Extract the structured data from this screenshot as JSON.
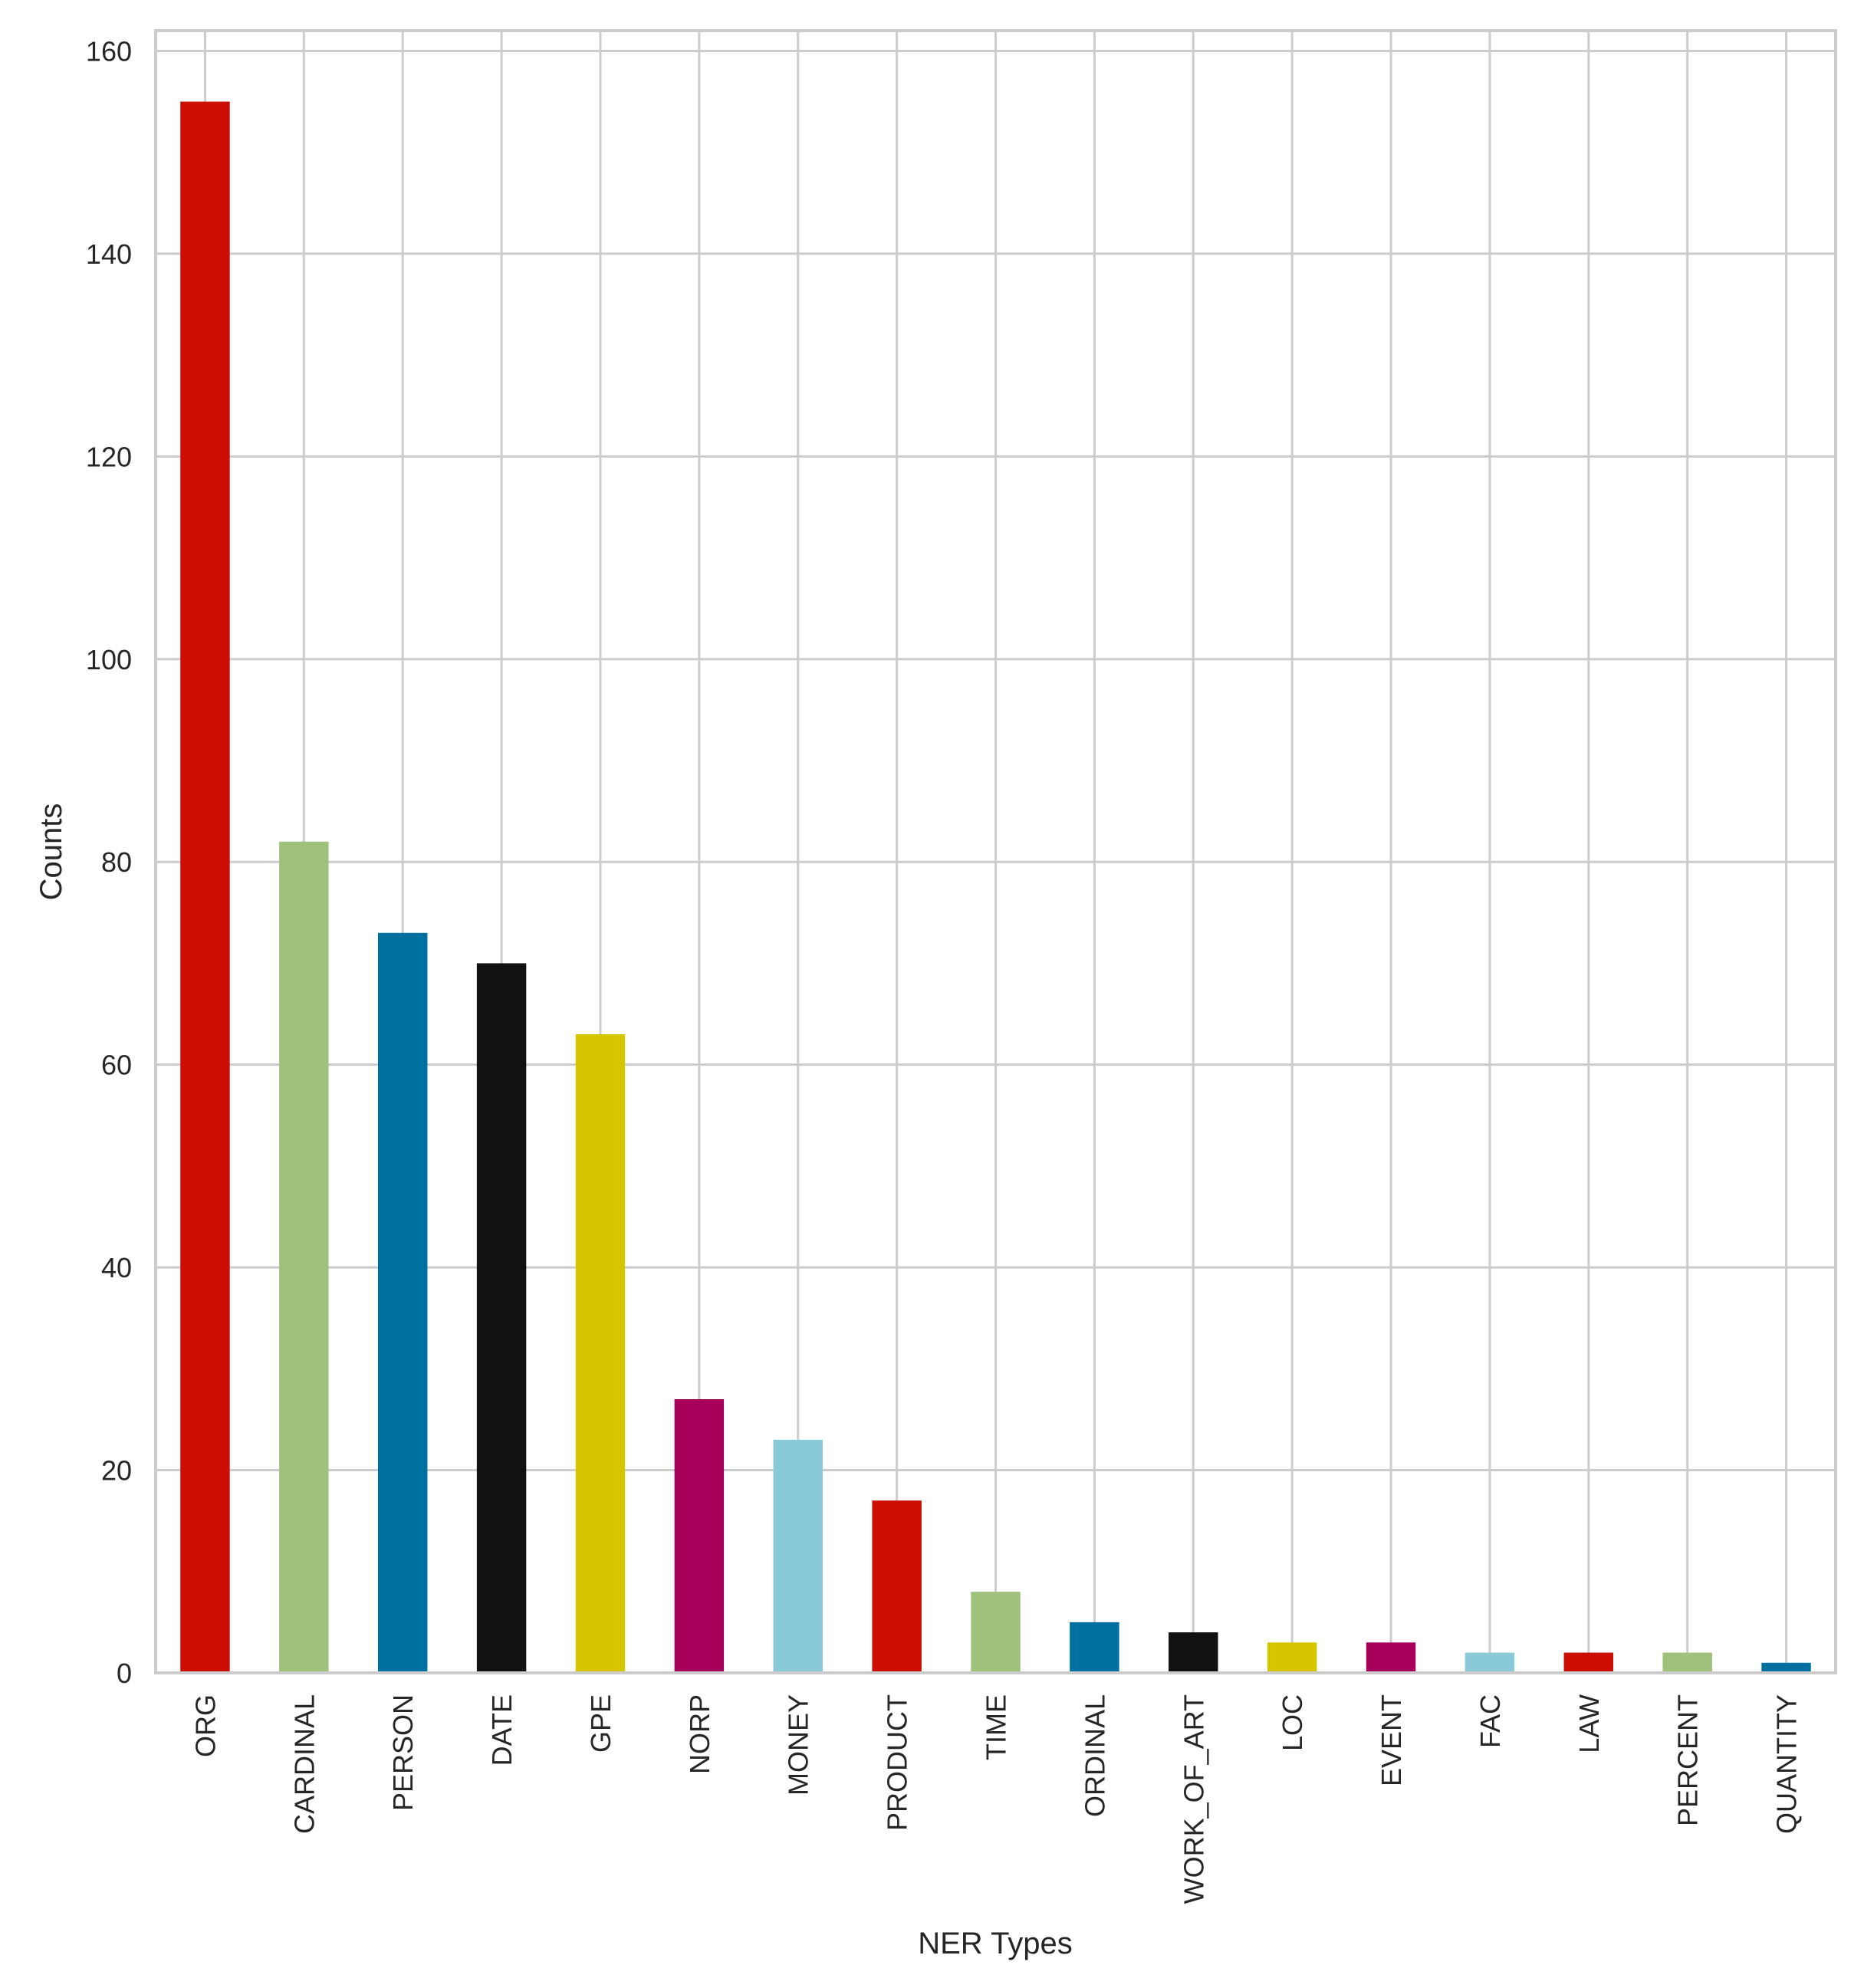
{
  "chart_data": {
    "type": "bar",
    "title": "",
    "xlabel": "NER Types",
    "ylabel": "Counts",
    "ylim": [
      0,
      162
    ],
    "yticks": [
      0,
      20,
      40,
      60,
      80,
      100,
      120,
      140,
      160
    ],
    "grid": true,
    "categories": [
      "ORG",
      "CARDINAL",
      "PERSON",
      "DATE",
      "GPE",
      "NORP",
      "MONEY",
      "PRODUCT",
      "TIME",
      "ORDINAL",
      "WORK_OF_ART",
      "LOC",
      "EVENT",
      "FAC",
      "LAW",
      "PERCENT",
      "QUANTITY"
    ],
    "values": [
      155,
      82,
      73,
      70,
      63,
      27,
      23,
      17,
      8,
      5,
      4,
      3,
      3,
      2,
      2,
      2,
      1
    ],
    "colors": [
      "#cc0e00",
      "#9fc27a",
      "#0070a0",
      "#111111",
      "#d6c600",
      "#a6005a",
      "#8acad8",
      "#cc0e00",
      "#9fc27a",
      "#0070a0",
      "#111111",
      "#d6c600",
      "#a6005a",
      "#8acad8",
      "#cc0e00",
      "#9fc27a",
      "#0070a0"
    ]
  }
}
